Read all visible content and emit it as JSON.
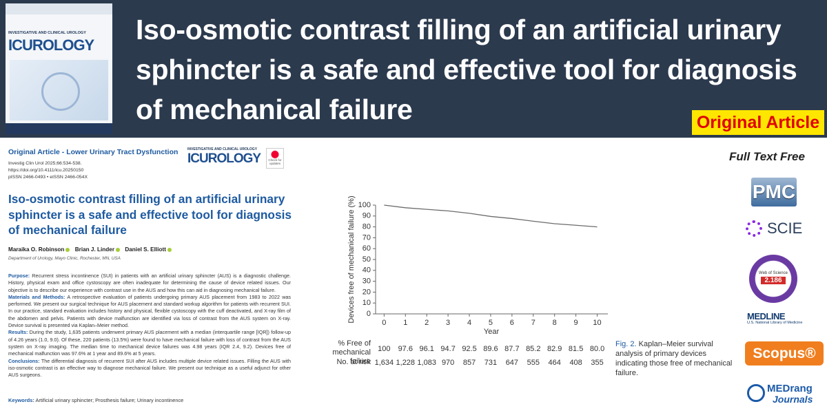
{
  "banner": {
    "cover": {
      "journal_name": "INVESTIGATIVE AND CLINICAL UROLOGY",
      "logo": "ICUROLOGY"
    },
    "title": "Iso-osmotic contrast filling of an artificial urinary sphincter is a safe and effective tool for diagnosis of mechanical failure",
    "badge": "Original Article"
  },
  "article": {
    "section": "Original Article - Lower Urinary Tract Dysfunction",
    "citation": [
      "Investig Clin Urol 2025;66:534-538.",
      "https://doi.org/10.4111/icu.20250150",
      "pISSN 2466-0493 • eISSN 2466-054X"
    ],
    "journal_logo": {
      "journal_name": "INVESTIGATIVE AND CLINICAL UROLOGY",
      "logo": "ICUROLOGY"
    },
    "check": "Check for updates",
    "title": "Iso-osmotic contrast filling of an artificial urinary sphincter is a safe and effective tool for diagnosis of mechanical failure",
    "authors": [
      "Maraika O. Robinson",
      "Brian J. Linder",
      "Daniel S. Elliott"
    ],
    "affiliation": "Department of Urology, Mayo Clinic, Rochester, MN, USA",
    "abstract": [
      {
        "label": "Purpose:",
        "text": "Recurrent stress incontinence (SUI) in patients with an artificial urinary sphincter (AUS) is a diagnostic challenge. History, physical exam and office cystoscopy are often inadequate for determining the cause of device related issues. Our objective is to describe our experience with contrast use in the AUS and how this can aid in diagnosing mechanical failure."
      },
      {
        "label": "Materials and Methods:",
        "text": "A retrospective evaluation of patients undergoing primary AUS placement from 1983 to 2022 was performed. We present our surgical technique for AUS placement and standard workup algorithm for patients with recurrent SUI. In our practice, standard evaluation includes history and physical, flexible cystoscopy with the cuff deactivated, and X-ray film of the abdomen and pelvis. Patients with device malfunction are identified via loss of contrast from the AUS system on X-ray. Device survival is presented via Kaplan–Meier method."
      },
      {
        "label": "Results:",
        "text": "During the study, 1,635 patients underwent primary AUS placement with a median (interquartile range [IQR]) follow-up of 4.26 years (1.0, 9.0). Of these, 220 patients (13.5%) were found to have mechanical failure with loss of contrast from the AUS system on X-ray imaging. The median time to mechanical device failures was 4.98 years (IQR 2.4, 9.2). Devices free of mechanical malfunction was 97.6% at 1 year and 89.6% at 5 years."
      },
      {
        "label": "Conclusions:",
        "text": "The differential diagnosis of recurrent SUI after AUS includes multiple device related issues. Filling the AUS with iso-osmotic contrast is an effective way to diagnose mechanical failure. We present our technique as a useful adjunct for other AUS surgeons."
      }
    ],
    "keywords": {
      "label": "Keywords:",
      "text": "Artificial urinary sphincter; Prosthesis failure; Urinary incontinence"
    }
  },
  "chart_data": {
    "type": "line",
    "x_label": "Year",
    "y_label": "Devices free of mechanical failure (%)",
    "x": [
      0,
      1,
      2,
      3,
      4,
      5,
      6,
      7,
      8,
      9,
      10
    ],
    "series": [
      {
        "name": "% Free of mechanical failure",
        "color": "#6b6b6b",
        "values": [
          100,
          97.6,
          96.1,
          94.7,
          92.5,
          89.6,
          87.7,
          85.2,
          82.9,
          81.5,
          80.0
        ],
        "value_labels": [
          "100",
          "97.6",
          "96.1",
          "94.7",
          "92.5",
          "89.6",
          "87.7",
          "85.2",
          "82.9",
          "81.5",
          "80.0"
        ]
      }
    ],
    "at_risk": {
      "name": "No. at risk",
      "values": [
        {
          "value": 1634,
          "label": "1,634"
        },
        {
          "value": 1228,
          "label": "1,228"
        },
        {
          "value": 1083,
          "label": "1,083"
        },
        970,
        857,
        731,
        647,
        555,
        464,
        408,
        355
      ]
    },
    "xlim": [
      -0.4,
      10.5
    ],
    "ylim": [
      0,
      100
    ],
    "xticks": [
      0,
      1,
      2,
      3,
      4,
      5,
      6,
      7,
      8,
      9,
      10
    ],
    "yticks": [
      0,
      10,
      20,
      30,
      40,
      50,
      60,
      70,
      80,
      90,
      100
    ]
  },
  "figure_caption": {
    "label": "Fig. 2.",
    "text": "Kaplan–Meier survival analysis of primary devices indicating those free of mechanical failure."
  },
  "sidebar": {
    "heading": "Full Text Free",
    "pmc": "PMC",
    "scie": "SCIE",
    "wos": {
      "name": "Web of Science",
      "value": "2.186"
    },
    "medline": {
      "name": "MEDLINE",
      "sub": "U.S. National Library of Medicine"
    },
    "scopus": "Scopus®",
    "medrang": {
      "name": "MEDrang",
      "sub": "Journals"
    }
  }
}
